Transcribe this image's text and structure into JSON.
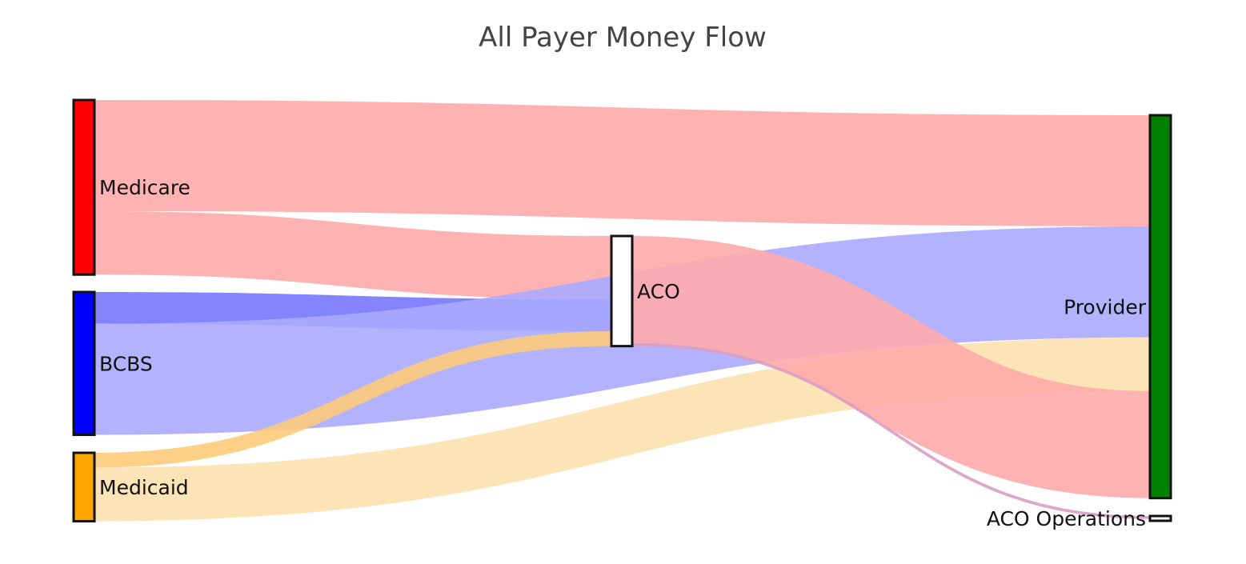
{
  "chart_data": {
    "type": "sankey",
    "title": "All Payer Money Flow",
    "nodes": [
      {
        "id": "medicare",
        "label": "Medicare",
        "color": "#ff0000"
      },
      {
        "id": "bcbs",
        "label": "BCBS",
        "color": "#0000ff"
      },
      {
        "id": "medicaid",
        "label": "Medicaid",
        "color": "#ffa500"
      },
      {
        "id": "aco",
        "label": "ACO",
        "color": "#ffffff"
      },
      {
        "id": "provider",
        "label": "Provider",
        "color": "#008000"
      },
      {
        "id": "aco_ops",
        "label": "ACO Operations",
        "color": "#ffffff"
      }
    ],
    "links": [
      {
        "source": "medicare",
        "target": "provider",
        "value": 56,
        "color": "#ffaaaa"
      },
      {
        "source": "medicare",
        "target": "aco",
        "value": 32,
        "color": "#ffaaaa"
      },
      {
        "source": "bcbs",
        "target": "aco",
        "value": 16,
        "color": "#7777ff"
      },
      {
        "source": "bcbs",
        "target": "provider",
        "value": 56,
        "color": "#aaaaff"
      },
      {
        "source": "medicaid",
        "target": "aco",
        "value": 7.5,
        "color": "#fdca7a"
      },
      {
        "source": "medicaid",
        "target": "provider",
        "value": 27,
        "color": "#fce1ae"
      },
      {
        "source": "aco",
        "target": "provider",
        "value": 54,
        "color": "#ffaaaa"
      },
      {
        "source": "aco",
        "target": "aco_ops",
        "value": 1.5,
        "color": "#d99dc4"
      }
    ]
  }
}
